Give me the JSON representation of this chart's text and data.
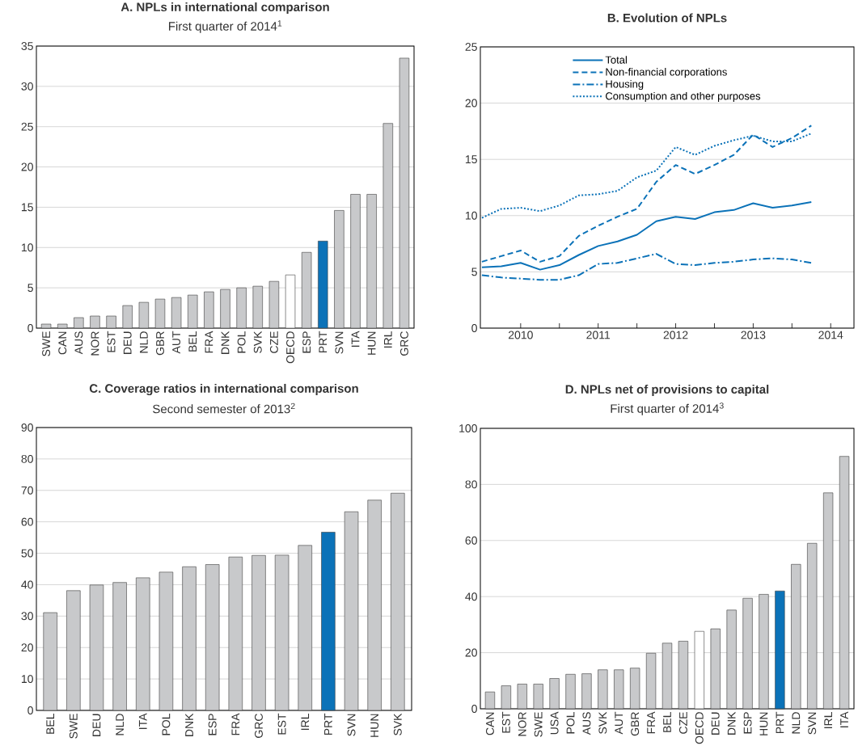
{
  "chart_data": [
    {
      "type": "bar",
      "title": "A. NPLs in international comparison",
      "subtitle": "First quarter of 2014$^{1}$",
      "categories": [
        "SWE",
        "CAN",
        "AUS",
        "NOR",
        "EST",
        "DEU",
        "NLD",
        "GBR",
        "AUT",
        "BEL",
        "FRA",
        "DNK",
        "POL",
        "SVK",
        "CZE",
        "OECD",
        "ESP",
        "PRT",
        "SVN",
        "ITA",
        "HUN",
        "IRL",
        "GRC"
      ],
      "values": [
        0.5,
        0.5,
        1.3,
        1.5,
        1.5,
        2.8,
        3.2,
        3.6,
        3.8,
        4.1,
        4.5,
        4.8,
        5.0,
        5.2,
        5.8,
        6.6,
        9.4,
        10.8,
        14.6,
        16.6,
        16.6,
        25.4,
        33.5
      ],
      "colors": [
        "#c8c9cb",
        "#c8c9cb",
        "#c8c9cb",
        "#c8c9cb",
        "#c8c9cb",
        "#c8c9cb",
        "#c8c9cb",
        "#c8c9cb",
        "#c8c9cb",
        "#c8c9cb",
        "#c8c9cb",
        "#c8c9cb",
        "#c8c9cb",
        "#c8c9cb",
        "#c8c9cb",
        "#ffffff",
        "#c8c9cb",
        "#0b72b8",
        "#c8c9cb",
        "#c8c9cb",
        "#c8c9cb",
        "#c8c9cb",
        "#c8c9cb"
      ],
      "ylim": [
        0,
        35
      ],
      "yticks": [
        0,
        5,
        10,
        15,
        20,
        25,
        30,
        35
      ],
      "grid": "y"
    },
    {
      "type": "line",
      "title": "B. Evolution of NPLs",
      "x": [
        2010.0,
        2010.25,
        2010.5,
        2010.75,
        2011.0,
        2011.25,
        2011.5,
        2011.75,
        2012.0,
        2012.25,
        2012.5,
        2012.75,
        2013.0,
        2013.25,
        2013.5,
        2013.75,
        2014.0,
        2014.25
      ],
      "series": [
        {
          "name": "Total",
          "color": "#0b72b8",
          "line_style": "solid",
          "values": [
            5.4,
            5.5,
            5.8,
            5.2,
            5.6,
            6.5,
            7.3,
            7.7,
            8.3,
            9.5,
            9.9,
            9.7,
            10.3,
            10.5,
            11.1,
            10.7,
            10.9,
            11.2
          ]
        },
        {
          "name": "Non-financial corporations",
          "color": "#0b72b8",
          "line_style": "dashed",
          "values": [
            5.9,
            6.4,
            6.9,
            5.9,
            6.4,
            8.2,
            9.1,
            9.9,
            10.6,
            13.0,
            14.5,
            13.7,
            14.5,
            15.4,
            17.2,
            16.1,
            16.9,
            18.0
          ]
        },
        {
          "name": "Housing",
          "color": "#0b72b8",
          "line_style": "dashdot",
          "values": [
            4.7,
            4.5,
            4.4,
            4.3,
            4.3,
            4.7,
            5.7,
            5.8,
            6.2,
            6.6,
            5.7,
            5.6,
            5.8,
            5.9,
            6.1,
            6.2,
            6.1,
            5.8
          ]
        },
        {
          "name": "Consumption and other purposes",
          "color": "#0b72b8",
          "line_style": "dotted",
          "values": [
            9.8,
            10.6,
            10.7,
            10.4,
            10.9,
            11.8,
            11.9,
            12.2,
            13.4,
            14.0,
            16.1,
            15.4,
            16.2,
            16.7,
            17.1,
            16.6,
            16.6,
            17.3
          ]
        }
      ],
      "xlim": [
        2009.98,
        2014.8
      ],
      "xticks": [
        {
          "value": 2010.5,
          "label": "2010"
        },
        {
          "value": 2011,
          "label": null
        },
        {
          "value": 2011.5,
          "label": "2011"
        },
        {
          "value": 2012,
          "label": null
        },
        {
          "value": 2012.5,
          "label": "2012"
        },
        {
          "value": 2013,
          "label": null
        },
        {
          "value": 2013.5,
          "label": "2013"
        },
        {
          "value": 2014,
          "label": null
        },
        {
          "value": 2014.5,
          "label": "2014"
        }
      ],
      "ylim": [
        0,
        25
      ],
      "yticks": [
        0,
        5,
        10,
        15,
        20,
        25
      ],
      "grid": "y",
      "legend": "top",
      "marker": "none"
    },
    {
      "type": "bar",
      "title": "C. Coverage ratios in international comparison",
      "subtitle": "Second semester of 2013$^{2}$",
      "categories": [
        "BEL",
        "SWE",
        "DEU",
        "NLD",
        "ITA",
        "POL",
        "DNK",
        "ESP",
        "FRA",
        "GRC",
        "EST",
        "IRL",
        "PRT",
        "SVN",
        "HUN",
        "SVK"
      ],
      "values": [
        31.1,
        38.1,
        39.9,
        40.7,
        42.2,
        44.0,
        45.7,
        46.4,
        48.8,
        49.3,
        49.4,
        52.5,
        56.7,
        63.2,
        66.9,
        69.1
      ],
      "colors": [
        "#c8c9cb",
        "#c8c9cb",
        "#c8c9cb",
        "#c8c9cb",
        "#c8c9cb",
        "#c8c9cb",
        "#c8c9cb",
        "#c8c9cb",
        "#c8c9cb",
        "#c8c9cb",
        "#c8c9cb",
        "#c8c9cb",
        "#0b72b8",
        "#c8c9cb",
        "#c8c9cb",
        "#c8c9cb"
      ],
      "ylim": [
        0,
        90
      ],
      "yticks": [
        0,
        10,
        20,
        30,
        40,
        50,
        60,
        70,
        80,
        90
      ],
      "grid": "y"
    },
    {
      "type": "bar",
      "title": "D. NPLs net of provisions to capital",
      "subtitle": "First quarter of 2014$^{3}$",
      "categories": [
        "CAN",
        "EST",
        "NOR",
        "SWE",
        "USA",
        "POL",
        "AUS",
        "SVK",
        "AUT",
        "GBR",
        "FRA",
        "BEL",
        "CZE",
        "OECD",
        "DEU",
        "DNK",
        "ESP",
        "HUN",
        "PRT",
        "NLD",
        "SVN",
        "IRL",
        "ITA"
      ],
      "values": [
        6.0,
        8.2,
        8.8,
        8.8,
        10.8,
        12.3,
        12.5,
        13.9,
        13.9,
        14.5,
        19.8,
        23.4,
        24.1,
        27.6,
        28.5,
        35.2,
        39.4,
        40.8,
        42.0,
        51.5,
        59.0,
        77.0,
        90.0
      ],
      "colors": [
        "#c8c9cb",
        "#c8c9cb",
        "#c8c9cb",
        "#c8c9cb",
        "#c8c9cb",
        "#c8c9cb",
        "#c8c9cb",
        "#c8c9cb",
        "#c8c9cb",
        "#c8c9cb",
        "#c8c9cb",
        "#c8c9cb",
        "#c8c9cb",
        "#ffffff",
        "#c8c9cb",
        "#c8c9cb",
        "#c8c9cb",
        "#c8c9cb",
        "#0b72b8",
        "#c8c9cb",
        "#c8c9cb",
        "#c8c9cb",
        "#c8c9cb"
      ],
      "ylim": [
        0,
        100
      ],
      "yticks": [
        0,
        20,
        40,
        60,
        80,
        100
      ],
      "grid": "y"
    }
  ]
}
